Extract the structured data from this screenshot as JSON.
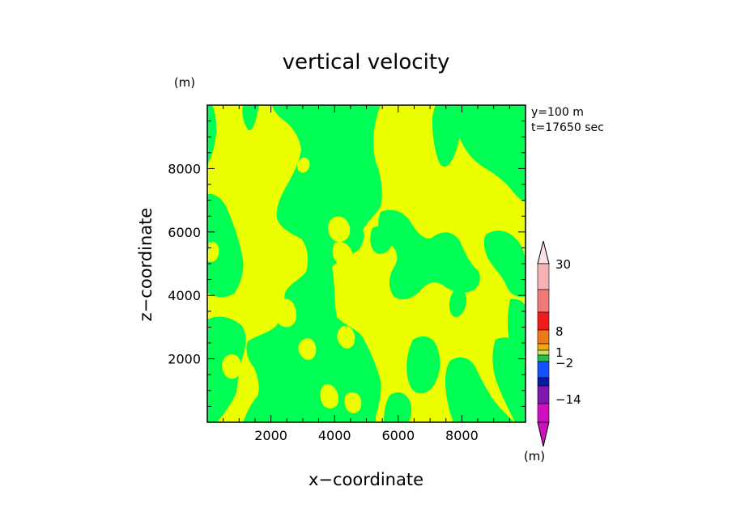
{
  "chart_data": {
    "type": "heatmap",
    "title": "vertical velocity",
    "xlabel": "x−coordinate",
    "ylabel": "z−coordinate",
    "x_unit": "(m)",
    "y_unit": "(m)",
    "annotations": [
      "y=100 m",
      "t=17650 sec"
    ],
    "xlim": [
      0,
      10000
    ],
    "ylim": [
      0,
      10000
    ],
    "xticks": [
      2000,
      4000,
      6000,
      8000
    ],
    "yticks": [
      2000,
      4000,
      6000,
      8000
    ],
    "xtick_labels": [
      "2000",
      "4000",
      "6000",
      "8000"
    ],
    "ytick_labels": [
      "2000",
      "4000",
      "6000",
      "8000"
    ],
    "field_colors": {
      "negative": "#00ff55",
      "positive": "#ebff00"
    },
    "colorbar": {
      "unit": "(m)",
      "tick_labels": [
        "30",
        "8",
        "1",
        "−2",
        "−14"
      ],
      "bands_top_to_bottom": [
        {
          "color": "#f5b3b3"
        },
        {
          "color": "#f07a7a"
        },
        {
          "color": "#ee1c1c"
        },
        {
          "color": "#f07818"
        },
        {
          "color": "#f0aa10"
        },
        {
          "color": "#bce85a"
        },
        {
          "color": "#22c050"
        },
        {
          "color": "#1450ff"
        },
        {
          "color": "#0a18a8"
        },
        {
          "color": "#8018b0"
        },
        {
          "color": "#d010c0"
        }
      ],
      "top_arrow_color": "#fbe2e2",
      "bottom_arrow_color": "#d010c0"
    }
  }
}
